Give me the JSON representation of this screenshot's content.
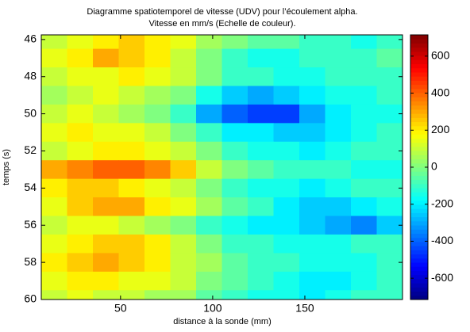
{
  "chart_data": {
    "type": "heatmap",
    "title": "Diagramme spatiotemporel de vitesse (UDV) pour l’écoulement alpha.",
    "subtitle": "Vitesse en mm/s (Echelle de couleur).",
    "x_label": "distance à la sonde (mm)",
    "y_label": "temps (s)",
    "colormap": "jet",
    "y_reversed": true,
    "x": [
      14,
      28,
      42,
      56,
      70,
      84,
      98,
      112,
      126,
      140,
      154,
      168,
      182,
      196
    ],
    "y": [
      46,
      47,
      48,
      49,
      50,
      51,
      52,
      53,
      54,
      55,
      56,
      57,
      58,
      59,
      60
    ],
    "values": [
      [
        100,
        150,
        200,
        250,
        200,
        150,
        50,
        0,
        -50,
        -50,
        -100,
        -100,
        -150,
        -100
      ],
      [
        150,
        200,
        300,
        250,
        200,
        100,
        0,
        -100,
        -150,
        -150,
        -100,
        -100,
        -100,
        -50
      ],
      [
        100,
        150,
        150,
        200,
        150,
        100,
        0,
        -100,
        -100,
        -150,
        -150,
        -100,
        -100,
        -100
      ],
      [
        50,
        100,
        150,
        100,
        50,
        0,
        -150,
        -250,
        -300,
        -250,
        -200,
        -150,
        -150,
        -100
      ],
      [
        100,
        150,
        100,
        50,
        0,
        -100,
        -300,
        -400,
        -450,
        -450,
        -300,
        -200,
        -150,
        -150
      ],
      [
        150,
        200,
        150,
        150,
        100,
        0,
        -100,
        -200,
        -200,
        -250,
        -250,
        -200,
        -150,
        -100
      ],
      [
        100,
        150,
        200,
        200,
        150,
        100,
        0,
        -100,
        -150,
        -150,
        -200,
        -150,
        -100,
        -100
      ],
      [
        300,
        350,
        400,
        400,
        350,
        250,
        100,
        0,
        -50,
        -100,
        -100,
        -100,
        -150,
        -150
      ],
      [
        200,
        250,
        250,
        200,
        150,
        100,
        0,
        -100,
        -150,
        -150,
        -200,
        -150,
        -100,
        -100
      ],
      [
        150,
        250,
        300,
        300,
        200,
        150,
        50,
        -50,
        -100,
        -200,
        -250,
        -250,
        -200,
        -150
      ],
      [
        100,
        150,
        150,
        100,
        50,
        0,
        -100,
        -150,
        -200,
        -200,
        -250,
        -300,
        -350,
        -250
      ],
      [
        150,
        200,
        250,
        250,
        200,
        100,
        0,
        -100,
        -100,
        -150,
        -150,
        -150,
        -100,
        -100
      ],
      [
        200,
        250,
        300,
        250,
        200,
        100,
        50,
        -50,
        -100,
        -100,
        -150,
        -150,
        -150,
        -100
      ],
      [
        150,
        200,
        200,
        150,
        150,
        100,
        0,
        -50,
        -100,
        -150,
        -200,
        -200,
        -150,
        -100
      ],
      [
        100,
        150,
        100,
        100,
        50,
        50,
        -50,
        -100,
        -150,
        -150,
        -200,
        -150,
        -100,
        -100
      ]
    ],
    "xlim": [
      7,
      203
    ],
    "ylim": [
      45.75,
      60
    ],
    "xticks": [
      50,
      100,
      150
    ],
    "yticks": [
      46,
      48,
      50,
      52,
      54,
      56,
      58,
      60
    ],
    "clim": [
      -715,
      715
    ],
    "cticks": [
      -600,
      -400,
      -200,
      0,
      200,
      400,
      600
    ]
  }
}
